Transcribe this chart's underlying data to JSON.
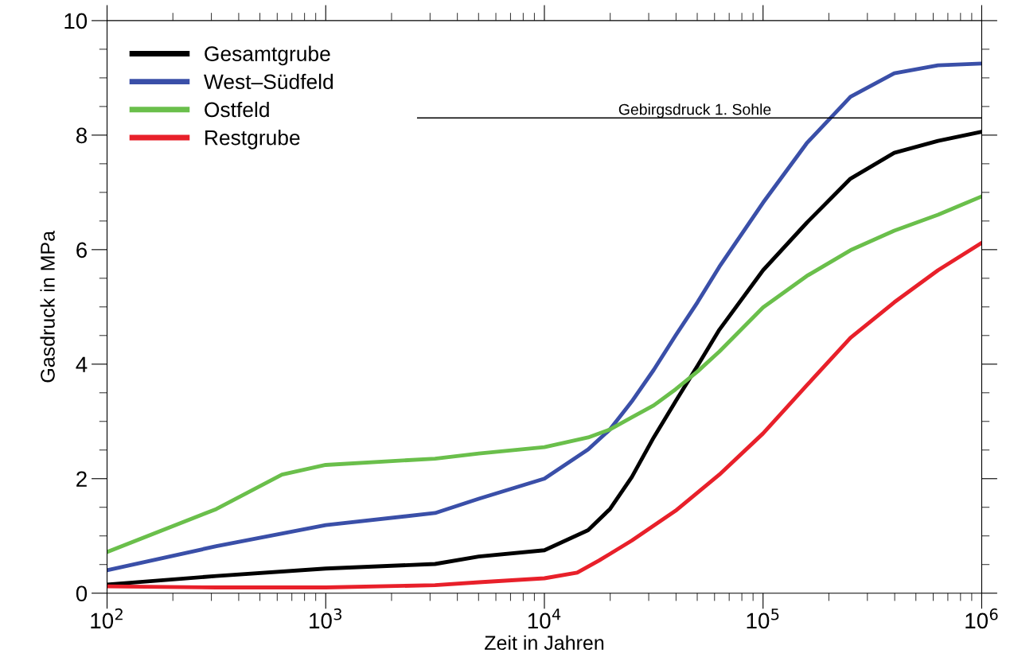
{
  "chart_data": {
    "type": "line",
    "xlabel": "Zeit in Jahren",
    "ylabel": "Gasdruck in MPa",
    "log": "x",
    "xlim": [
      100,
      1000000
    ],
    "xticks": [
      {
        "value": 100,
        "label": "10$^{2}$"
      },
      {
        "value": 1000,
        "label": "10$^{3}$"
      },
      {
        "value": 10000,
        "label": "10$^{4}$"
      },
      {
        "value": 100000,
        "label": "10$^{5}$"
      },
      {
        "value": 1000000,
        "label": "10$^{6}$"
      }
    ],
    "ylim": [
      0,
      10
    ],
    "yticks": [
      0,
      2,
      4,
      6,
      8,
      10
    ],
    "grid": false,
    "legend": "top left",
    "line_style": "solid",
    "marker": "none",
    "ref_lines": [
      {
        "axis": "y",
        "value": 8.3,
        "label": "Gebirgsdruck 1. Sohle",
        "color": "#000000"
      }
    ],
    "series": [
      {
        "name": "Gesamtgrube",
        "color": "#000000",
        "x": [
          100,
          316,
          1000,
          3162,
          5012,
          10000,
          15849,
          19953,
          25119,
          31623,
          39811,
          50119,
          63096,
          100000,
          158489,
          251189,
          398107,
          630957,
          1000000
        ],
        "values": [
          0.15,
          0.3,
          0.43,
          0.51,
          0.64,
          0.75,
          1.1,
          1.47,
          2.03,
          2.72,
          3.35,
          3.97,
          4.6,
          5.64,
          6.47,
          7.24,
          7.69,
          7.9,
          8.06
        ]
      },
      {
        "name": "West–Südfeld",
        "color": "#3a4fa8",
        "x": [
          100,
          316,
          1000,
          3162,
          5012,
          10000,
          15849,
          19953,
          25119,
          31623,
          39811,
          50119,
          63096,
          100000,
          158489,
          251189,
          398107,
          630957,
          1000000
        ],
        "values": [
          0.4,
          0.82,
          1.19,
          1.4,
          1.65,
          2.0,
          2.51,
          2.86,
          3.35,
          3.9,
          4.5,
          5.08,
          5.7,
          6.82,
          7.86,
          8.67,
          9.08,
          9.22,
          9.25
        ]
      },
      {
        "name": "Ostfeld",
        "color": "#6abf4b",
        "x": [
          100,
          316,
          631,
          1000,
          3162,
          5012,
          10000,
          15849,
          19953,
          25119,
          31623,
          39811,
          50119,
          63096,
          100000,
          158489,
          251189,
          398107,
          630957,
          1000000
        ],
        "values": [
          0.72,
          1.47,
          2.07,
          2.24,
          2.35,
          2.44,
          2.55,
          2.72,
          2.86,
          3.07,
          3.28,
          3.56,
          3.87,
          4.22,
          4.99,
          5.54,
          5.99,
          6.33,
          6.61,
          6.93
        ]
      },
      {
        "name": "Restgrube",
        "color": "#e8202a",
        "x": [
          100,
          316,
          1000,
          3162,
          5012,
          10000,
          14125,
          17783,
          25119,
          39811,
          63096,
          100000,
          158489,
          251189,
          398107,
          630957,
          1000000
        ],
        "values": [
          0.12,
          0.1,
          0.1,
          0.14,
          0.19,
          0.26,
          0.36,
          0.57,
          0.92,
          1.44,
          2.07,
          2.79,
          3.63,
          4.46,
          5.08,
          5.64,
          6.12
        ]
      }
    ]
  }
}
